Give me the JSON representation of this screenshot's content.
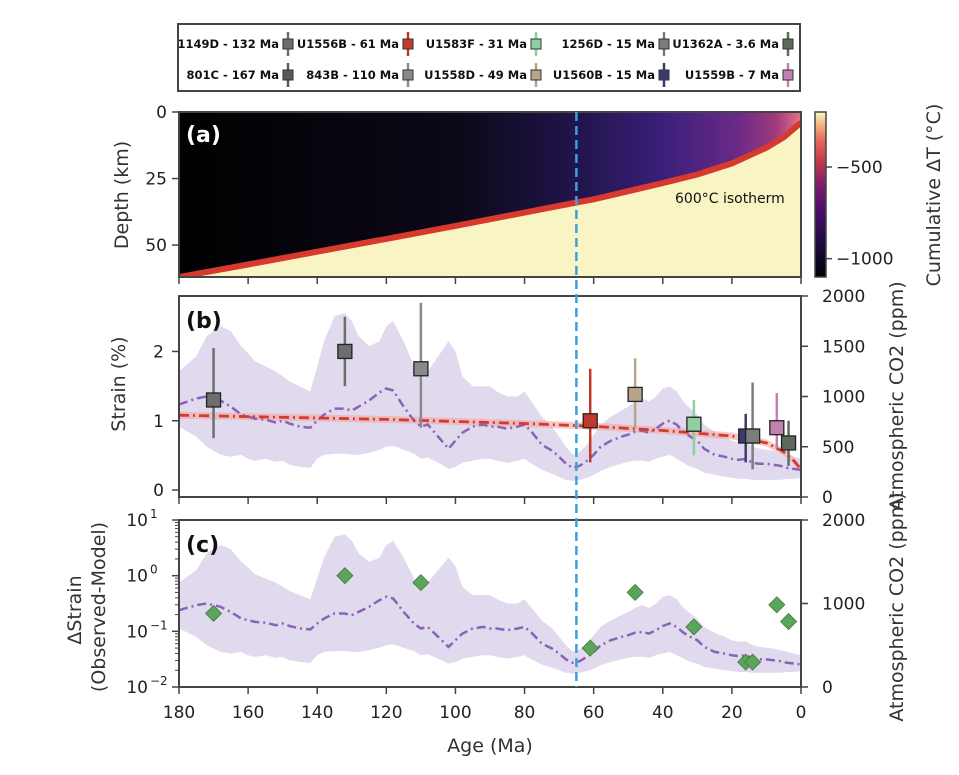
{
  "chart_data": {
    "type": "multi-panel",
    "xlabel": "Age (Ma)",
    "xlim": [
      180,
      0
    ],
    "xticks": [
      180,
      160,
      140,
      120,
      100,
      80,
      60,
      40,
      20,
      0
    ],
    "kpg_line_age": 65,
    "legend": [
      {
        "label": "1149D - 132 Ma",
        "color": "#6e6e6e"
      },
      {
        "label": "U1556B - 61 Ma",
        "color": "#c0392b"
      },
      {
        "label": "U1583F - 31 Ma",
        "color": "#8fcfa0"
      },
      {
        "label": "1256D - 15 Ma",
        "color": "#7d7d7d"
      },
      {
        "label": "U1362A - 3.6 Ma",
        "color": "#5d6b5f"
      },
      {
        "label": "801C - 167 Ma",
        "color": "#5a5a5a"
      },
      {
        "label": "843B - 110 Ma",
        "color": "#8a8a8a"
      },
      {
        "label": "U1558D - 49 Ma",
        "color": "#b7a48a"
      },
      {
        "label": "U1560B - 15 Ma",
        "color": "#3b3b6e"
      },
      {
        "label": "U1559B - 7 Ma",
        "color": "#c080b0"
      }
    ],
    "panel_a": {
      "label": "(a)",
      "ylabel": "Depth (km)",
      "ylim": [
        0,
        62
      ],
      "yticks": [
        0,
        25,
        50
      ],
      "isotherm_label": "600°C isotherm",
      "isotherm_age": [
        180,
        160,
        140,
        120,
        100,
        80,
        65,
        60,
        40,
        30,
        20,
        10,
        5,
        0
      ],
      "isotherm_depth": [
        62,
        57.3,
        52.5,
        47.7,
        42.8,
        37.8,
        34,
        32.8,
        26.7,
        23.5,
        19.3,
        13.4,
        9.5,
        4
      ],
      "colorbar_label": "Cumulative ΔT (°C)",
      "colorbar_ticks": [
        -500,
        -1000
      ],
      "colorbar_range": [
        -1100,
        -200
      ]
    },
    "panel_b": {
      "label": "(b)",
      "ylabel": "Strain (%)",
      "ylim": [
        -0.1,
        2.8
      ],
      "yticks": [
        0,
        1,
        2
      ],
      "y2label": "Atmospheric CO2 (ppm)",
      "y2lim": [
        0,
        2000
      ],
      "y2ticks": [
        0,
        500,
        1000,
        1500,
        2000
      ],
      "model_age": [
        180,
        150,
        120,
        100,
        80,
        60,
        40,
        20,
        10,
        5,
        2,
        0
      ],
      "model_strain": [
        1.08,
        1.05,
        1.02,
        0.99,
        0.96,
        0.92,
        0.86,
        0.78,
        0.68,
        0.55,
        0.42,
        0.3
      ],
      "sites": [
        {
          "age": 170,
          "strain": 1.3,
          "err_low": 0.75,
          "err_high": 2.05,
          "color": "#6e6e6e"
        },
        {
          "age": 132,
          "strain": 2.0,
          "err_low": 1.5,
          "err_high": 2.5,
          "color": "#6e6e6e"
        },
        {
          "age": 110,
          "strain": 1.75,
          "err_low": 0.9,
          "err_high": 2.7,
          "color": "#8a8a8a"
        },
        {
          "age": 61,
          "strain": 1.0,
          "err_low": 0.4,
          "err_high": 1.75,
          "color": "#c0392b"
        },
        {
          "age": 48,
          "strain": 1.38,
          "err_low": 0.9,
          "err_high": 1.9,
          "color": "#b7a48a"
        },
        {
          "age": 31,
          "strain": 0.95,
          "err_low": 0.5,
          "err_high": 1.3,
          "color": "#8fcfa0"
        },
        {
          "age": 16,
          "strain": 0.78,
          "err_low": 0.4,
          "err_high": 1.1,
          "color": "#3b3b6e"
        },
        {
          "age": 14,
          "strain": 0.78,
          "err_low": 0.3,
          "err_high": 1.55,
          "color": "#7d7d7d"
        },
        {
          "age": 7,
          "strain": 0.9,
          "err_low": 0.6,
          "err_high": 1.4,
          "color": "#c080b0"
        },
        {
          "age": 3.6,
          "strain": 0.68,
          "err_low": 0.35,
          "err_high": 1.0,
          "color": "#5d6b5f"
        }
      ]
    },
    "panel_c": {
      "label": "(c)",
      "ylabel": "ΔStrain (Observed-Model)",
      "yscale": "log",
      "ylim_exp": [
        -2,
        1
      ],
      "yticks_exp": [
        1,
        0,
        -1,
        -2
      ],
      "y2label": "Atmospheric CO2 (ppm)",
      "y2lim": [
        0,
        2000
      ],
      "y2ticks": [
        0,
        1000,
        2000
      ],
      "diamonds": [
        {
          "age": 170,
          "value": 0.21
        },
        {
          "age": 132,
          "value": 1.0
        },
        {
          "age": 110,
          "value": 0.75
        },
        {
          "age": 61,
          "value": 0.05
        },
        {
          "age": 48,
          "value": 0.5
        },
        {
          "age": 31,
          "value": 0.12
        },
        {
          "age": 16,
          "value": 0.028
        },
        {
          "age": 14,
          "value": 0.028
        },
        {
          "age": 7,
          "value": 0.3
        },
        {
          "age": 3.6,
          "value": 0.15
        }
      ]
    },
    "co2": {
      "age": [
        180,
        175,
        172,
        168,
        165,
        162,
        160,
        158,
        155,
        152,
        150,
        148,
        145,
        142,
        140,
        138,
        135,
        132,
        130,
        128,
        125,
        122,
        120,
        118,
        115,
        112,
        110,
        108,
        105,
        102,
        100,
        98,
        95,
        92,
        90,
        88,
        85,
        82,
        80,
        78,
        75,
        72,
        70,
        68,
        66,
        64,
        62,
        60,
        58,
        55,
        52,
        50,
        48,
        46,
        44,
        42,
        40,
        38,
        36,
        34,
        32,
        30,
        28,
        25,
        22,
        20,
        18,
        16,
        14,
        12,
        10,
        8,
        6,
        4,
        2,
        0
      ],
      "median": [
        920,
        980,
        1000,
        960,
        900,
        820,
        800,
        780,
        770,
        740,
        760,
        730,
        700,
        690,
        760,
        820,
        880,
        880,
        860,
        900,
        960,
        1040,
        1080,
        1060,
        900,
        760,
        700,
        720,
        600,
        480,
        560,
        640,
        700,
        720,
        700,
        700,
        680,
        700,
        720,
        650,
        520,
        460,
        400,
        330,
        290,
        310,
        360,
        420,
        500,
        560,
        600,
        620,
        650,
        660,
        640,
        680,
        730,
        760,
        720,
        650,
        600,
        560,
        480,
        420,
        400,
        380,
        370,
        380,
        340,
        330,
        330,
        320,
        310,
        290,
        280,
        270
      ],
      "low": [
        700,
        600,
        500,
        420,
        400,
        420,
        380,
        360,
        380,
        350,
        360,
        320,
        300,
        290,
        380,
        420,
        430,
        430,
        420,
        420,
        440,
        470,
        500,
        510,
        470,
        430,
        380,
        390,
        340,
        280,
        300,
        340,
        360,
        380,
        380,
        360,
        340,
        360,
        380,
        330,
        270,
        230,
        200,
        170,
        160,
        170,
        190,
        220,
        260,
        300,
        330,
        350,
        360,
        360,
        350,
        380,
        400,
        420,
        380,
        340,
        300,
        280,
        240,
        220,
        200,
        190,
        180,
        180,
        170,
        170,
        170,
        170,
        170,
        180,
        180,
        190
      ],
      "high": [
        1250,
        1400,
        1600,
        1700,
        1650,
        1500,
        1430,
        1350,
        1300,
        1250,
        1200,
        1150,
        1100,
        1050,
        1300,
        1550,
        1800,
        1830,
        1750,
        1600,
        1500,
        1550,
        1700,
        1750,
        1550,
        1300,
        1200,
        1250,
        1400,
        1550,
        1450,
        1200,
        1100,
        1100,
        1100,
        1050,
        1000,
        1000,
        1050,
        950,
        800,
        700,
        600,
        500,
        420,
        450,
        520,
        620,
        720,
        800,
        860,
        900,
        950,
        980,
        950,
        1000,
        1080,
        1100,
        1050,
        950,
        880,
        820,
        720,
        650,
        600,
        560,
        540,
        550,
        500,
        480,
        470,
        460,
        440,
        420,
        400,
        380
      ]
    }
  }
}
